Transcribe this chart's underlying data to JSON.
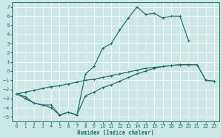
{
  "xlabel": "Humidex (Indice chaleur)",
  "bg_color": "#cce8e4",
  "grid_color": "#ffffff",
  "line_color": "#1a6b6b",
  "xlim": [
    -0.5,
    23.5
  ],
  "ylim": [
    -5.5,
    7.5
  ],
  "xticks": [
    0,
    1,
    2,
    3,
    4,
    5,
    6,
    7,
    8,
    9,
    10,
    11,
    12,
    13,
    14,
    15,
    16,
    17,
    18,
    19,
    20,
    21,
    22,
    23
  ],
  "yticks": [
    -5,
    -4,
    -3,
    -2,
    -1,
    0,
    1,
    2,
    3,
    4,
    5,
    6,
    7
  ],
  "line1_x": [
    0,
    1,
    2,
    3,
    4,
    5,
    6,
    7,
    8,
    9,
    10,
    11,
    12,
    13,
    14,
    15,
    16,
    17,
    18,
    19,
    20
  ],
  "line1_y": [
    -2.5,
    -3.0,
    -3.5,
    -3.7,
    -4.0,
    -4.8,
    -4.5,
    -4.8,
    -0.3,
    0.5,
    2.5,
    3.0,
    4.5,
    5.8,
    7.0,
    6.2,
    6.3,
    5.8,
    6.0,
    6.0,
    3.3
  ],
  "line2_x": [
    0,
    1,
    2,
    3,
    4,
    5,
    6,
    7,
    8,
    9,
    10,
    11,
    12,
    13,
    14,
    15,
    16,
    17,
    18,
    19,
    20,
    21,
    22,
    23
  ],
  "line2_y": [
    -2.5,
    -2.3,
    -2.1,
    -1.9,
    -1.7,
    -1.6,
    -1.4,
    -1.2,
    -1.0,
    -0.9,
    -0.7,
    -0.5,
    -0.3,
    -0.1,
    0.1,
    0.3,
    0.4,
    0.5,
    0.6,
    0.7,
    0.7,
    0.7,
    -1.0,
    -1.1
  ],
  "line3_x": [
    0,
    1,
    2,
    3,
    4,
    5,
    6,
    7,
    8,
    9,
    10,
    11,
    12,
    13,
    14,
    15,
    16,
    17,
    18,
    19,
    20,
    21,
    22,
    23
  ],
  "line3_y": [
    -2.5,
    -2.8,
    -3.5,
    -3.7,
    -3.7,
    -4.8,
    -4.5,
    -4.8,
    -2.7,
    -2.3,
    -1.8,
    -1.5,
    -1.1,
    -0.7,
    -0.3,
    0.0,
    0.3,
    0.5,
    0.6,
    0.7,
    0.7,
    0.7,
    -1.0,
    -1.1
  ]
}
